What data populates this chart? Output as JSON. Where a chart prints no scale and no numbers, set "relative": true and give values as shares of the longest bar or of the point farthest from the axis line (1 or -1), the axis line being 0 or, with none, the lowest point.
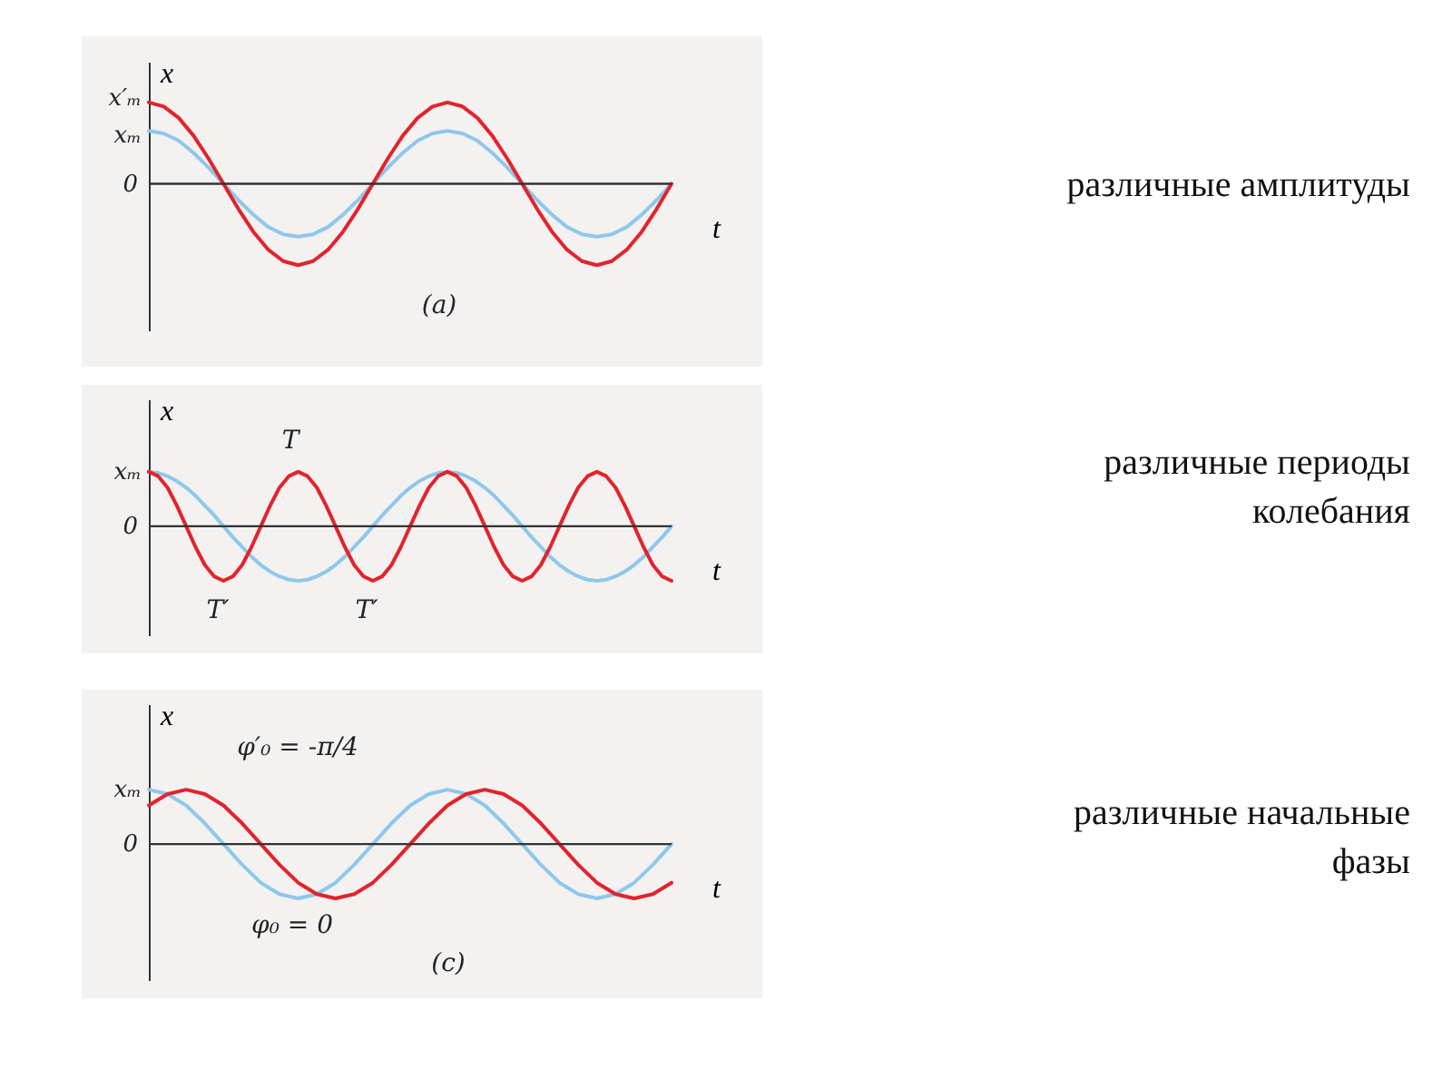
{
  "chart_data": [
    {
      "type": "line",
      "relative": true,
      "xlabel": "t",
      "ylabel": "x",
      "categories": [
        null,
        null,
        null,
        null,
        null,
        null,
        null,
        null,
        null,
        null,
        null,
        null,
        null,
        null,
        null,
        null,
        null,
        null,
        null,
        null,
        null,
        null,
        null,
        null,
        null,
        null,
        null,
        null,
        null,
        null,
        null,
        null,
        null,
        null,
        null,
        null
      ],
      "series": [
        {
          "color": "#8ec8ea",
          "values": [
            0.65,
            0.62,
            0.53,
            0.38,
            0.2,
            0,
            -0.2,
            -0.38,
            -0.53,
            -0.62,
            -0.65,
            -0.62,
            -0.53,
            -0.38,
            -0.2,
            0,
            0.2,
            0.38,
            0.53,
            0.62,
            0.65,
            0.62,
            0.53,
            0.38,
            0.2,
            0,
            -0.2,
            -0.38,
            -0.53,
            -0.62,
            -0.65,
            -0.62,
            -0.53,
            -0.38,
            -0.2,
            0
          ]
        },
        {
          "color": "#e3232c",
          "values": [
            1,
            0.95,
            0.81,
            0.59,
            0.31,
            0,
            -0.31,
            -0.59,
            -0.81,
            -0.95,
            -1,
            -0.95,
            -0.81,
            -0.59,
            -0.31,
            0,
            0.31,
            0.59,
            0.81,
            0.95,
            1,
            0.95,
            0.81,
            0.59,
            0.31,
            0,
            -0.31,
            -0.59,
            -0.81,
            -0.95,
            -1,
            -0.95,
            -0.81,
            -0.59,
            -0.31,
            0
          ]
        }
      ],
      "annotations": [
        "x′ₘ",
        "xₘ",
        "0",
        "(a)",
        "различные амплитуды"
      ]
    },
    {
      "type": "line",
      "relative": true,
      "xlabel": "t",
      "ylabel": "x",
      "categories": [
        null,
        null,
        null,
        null,
        null,
        null,
        null,
        null,
        null,
        null,
        null,
        null,
        null,
        null,
        null,
        null,
        null,
        null,
        null,
        null,
        null,
        null,
        null,
        null,
        null,
        null,
        null,
        null,
        null,
        null,
        null,
        null,
        null,
        null,
        null,
        null,
        null,
        null,
        null,
        null,
        null,
        null,
        null,
        null,
        null,
        null,
        null,
        null,
        null,
        null,
        null,
        null,
        null,
        null,
        null,
        null,
        null
      ],
      "series": [
        {
          "color": "#8ec8ea",
          "values": [
            1,
            0.98,
            0.92,
            0.83,
            0.71,
            0.56,
            0.38,
            0.2,
            0,
            -0.2,
            -0.38,
            -0.56,
            -0.71,
            -0.83,
            -0.92,
            -0.98,
            -1,
            -0.98,
            -0.92,
            -0.83,
            -0.71,
            -0.56,
            -0.38,
            -0.2,
            0,
            0.2,
            0.38,
            0.56,
            0.71,
            0.83,
            0.92,
            0.98,
            1,
            0.98,
            0.92,
            0.83,
            0.71,
            0.56,
            0.38,
            0.2,
            0,
            -0.2,
            -0.38,
            -0.56,
            -0.71,
            -0.83,
            -0.92,
            -0.98,
            -1,
            -0.98,
            -0.92,
            -0.83,
            -0.71,
            -0.56,
            -0.38,
            -0.2,
            0
          ]
        },
        {
          "color": "#e3232c",
          "values": [
            1,
            0.92,
            0.71,
            0.38,
            0,
            -0.38,
            -0.71,
            -0.92,
            -1,
            -0.92,
            -0.71,
            -0.38,
            0,
            0.38,
            0.71,
            0.92,
            1,
            0.92,
            0.71,
            0.38,
            0,
            -0.38,
            -0.71,
            -0.92,
            -1,
            -0.92,
            -0.71,
            -0.38,
            0,
            0.38,
            0.71,
            0.92,
            1,
            0.92,
            0.71,
            0.38,
            0,
            -0.38,
            -0.71,
            -0.92,
            -1,
            -0.92,
            -0.71,
            -0.38,
            0,
            0.38,
            0.71,
            0.92,
            1,
            0.92,
            0.71,
            0.38,
            0,
            -0.38,
            -0.71,
            -0.92,
            -1
          ]
        }
      ],
      "annotations": [
        "xₘ",
        "0",
        "T",
        "T′",
        "T′",
        "различные периоды\nколебания"
      ]
    },
    {
      "type": "line",
      "relative": true,
      "xlabel": "t",
      "ylabel": "x",
      "categories": [
        null,
        null,
        null,
        null,
        null,
        null,
        null,
        null,
        null,
        null,
        null,
        null,
        null,
        null,
        null,
        null,
        null,
        null,
        null,
        null,
        null,
        null,
        null,
        null,
        null,
        null,
        null,
        null,
        null
      ],
      "series": [
        {
          "color": "#8ec8ea",
          "values": [
            1,
            0.92,
            0.71,
            0.38,
            0,
            -0.38,
            -0.71,
            -0.92,
            -1,
            -0.92,
            -0.71,
            -0.38,
            0,
            0.38,
            0.71,
            0.92,
            1,
            0.92,
            0.71,
            0.38,
            0,
            -0.38,
            -0.71,
            -0.92,
            -1,
            -0.92,
            -0.71,
            -0.38,
            0
          ]
        },
        {
          "color": "#e3232c",
          "values": [
            0.71,
            0.92,
            1,
            0.92,
            0.71,
            0.38,
            0,
            -0.38,
            -0.71,
            -0.92,
            -1,
            -0.92,
            -0.71,
            -0.38,
            0,
            0.38,
            0.71,
            0.92,
            1,
            0.92,
            0.71,
            0.38,
            0,
            -0.38,
            -0.71,
            -0.92,
            -1,
            -0.92,
            -0.71
          ]
        }
      ],
      "annotations": [
        "xₘ",
        "0",
        "φ′₀ = -π/4",
        "φ₀ = 0",
        "(c)",
        "различные начальные\nфазы"
      ]
    }
  ]
}
